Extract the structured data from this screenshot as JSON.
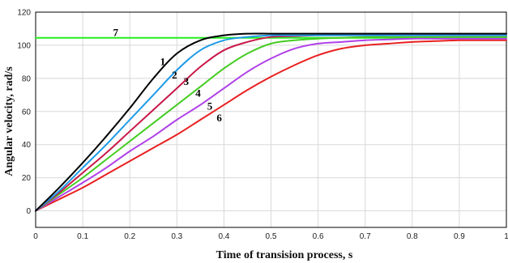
{
  "chart_data": {
    "type": "line",
    "xlabel": "Time of transision process, s",
    "ylabel": "Angular velocity, rad/s",
    "xlim": [
      0,
      1
    ],
    "ylim": [
      -10,
      120
    ],
    "xticks": [
      "0",
      "0.1",
      "0.2",
      "0.3",
      "0.4",
      "0.5",
      "0.6",
      "0.7",
      "0.8",
      "0.9",
      "1"
    ],
    "yticks": [
      "0",
      "20",
      "40",
      "60",
      "80",
      "100",
      "120"
    ],
    "grid": true,
    "x": [
      0,
      0.05,
      0.1,
      0.15,
      0.2,
      0.25,
      0.3,
      0.35,
      0.4,
      0.45,
      0.5,
      0.55,
      0.6,
      0.65,
      0.7,
      0.75,
      0.8,
      0.85,
      0.9,
      0.95,
      1.0
    ],
    "series": [
      {
        "name": "1",
        "color": "#000000",
        "label_at": [
          0.27,
          88
        ],
        "values": [
          0,
          14,
          29,
          45,
          62,
          80,
          95,
          103,
          106,
          107,
          107,
          107,
          107,
          107,
          107,
          107,
          107,
          107,
          107,
          107,
          107
        ]
      },
      {
        "name": "2",
        "color": "#1e9be8",
        "label_at": [
          0.295,
          80
        ],
        "values": [
          0,
          12,
          26,
          40,
          55,
          70,
          85,
          97,
          103,
          105,
          106,
          106,
          106,
          106,
          106,
          106,
          106,
          106,
          106,
          106,
          106
        ]
      },
      {
        "name": "3",
        "color": "#c81848",
        "label_at": [
          0.32,
          76
        ],
        "values": [
          0,
          11,
          23,
          35,
          48,
          61,
          74,
          87,
          97,
          102,
          105,
          105.5,
          106,
          106,
          106,
          106,
          106,
          106,
          106,
          106,
          106
        ]
      },
      {
        "name": "4",
        "color": "#44cc22",
        "label_at": [
          0.345,
          69
        ],
        "values": [
          0,
          10,
          20,
          31,
          42,
          53,
          64,
          75,
          86,
          95,
          101,
          103,
          104,
          104.5,
          105,
          105,
          105,
          105,
          105,
          105,
          105
        ]
      },
      {
        "name": "5",
        "color": "#b040e8",
        "label_at": [
          0.37,
          61
        ],
        "values": [
          0,
          8.5,
          17,
          26,
          36,
          45,
          55,
          64,
          74,
          84,
          92,
          98,
          101,
          102,
          103,
          103.5,
          104,
          104,
          104,
          104,
          104
        ]
      },
      {
        "name": "6",
        "color": "#e82020",
        "label_at": [
          0.39,
          54
        ],
        "values": [
          0,
          7,
          14,
          22,
          30,
          38,
          46,
          55,
          64,
          73,
          81,
          88,
          94,
          98,
          100,
          101,
          102,
          102.5,
          103,
          103,
          103
        ]
      },
      {
        "name": "7",
        "color": "#22ee22",
        "label_at": [
          0.17,
          105.5
        ],
        "values": [
          104.5,
          104.5,
          104.5,
          104.5,
          104.5,
          104.5,
          104.5,
          104.5,
          104.5,
          104.5,
          104.5,
          104.5,
          104.5,
          104.5,
          104.5,
          104.5,
          104.5,
          104.5,
          104.5,
          104.5,
          104.5
        ]
      }
    ]
  }
}
